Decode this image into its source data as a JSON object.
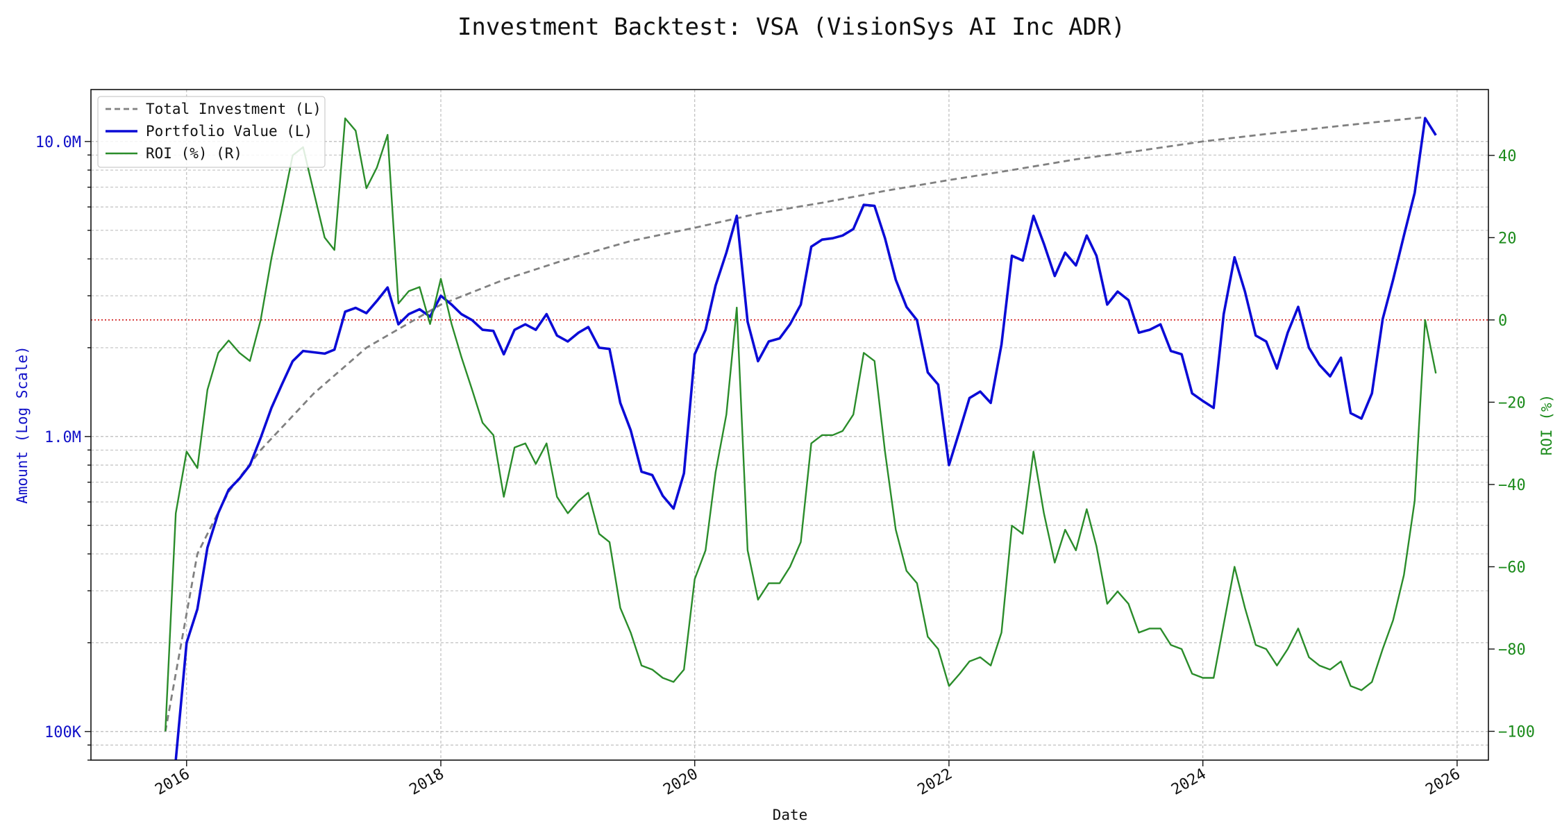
{
  "chart_data": {
    "type": "line",
    "title": "Investment Backtest: VSA (VisionSys AI Inc ADR)",
    "xlabel": "Date",
    "ylabel_left": "Amount (Log Scale)",
    "ylabel_right": "ROI (%)",
    "x_range": [
      "2015-04-01",
      "2026-04-01"
    ],
    "x_ticks": [
      "2016",
      "2018",
      "2020",
      "2022",
      "2024",
      "2026"
    ],
    "y_left_scale": "log",
    "y_left_range": [
      80000,
      15000000
    ],
    "y_left_ticks": [
      {
        "value": 100000,
        "label": "100K"
      },
      {
        "value": 1000000,
        "label": "1.0M"
      },
      {
        "value": 10000000,
        "label": "10.0M"
      }
    ],
    "y_right_range": [
      -107,
      56
    ],
    "y_right_ticks": [
      -100,
      -80,
      -60,
      -40,
      -20,
      0,
      20,
      40
    ],
    "grid": true,
    "legend_position": "top-left",
    "zero_line": {
      "axis": "right",
      "value": 0,
      "color": "#cc0000"
    },
    "colors": {
      "investment": "#808080",
      "portfolio": "#0b0bd6",
      "roi": "#2a8c2a",
      "left_axis": "#1010c8",
      "right_axis": "#1a8a1a"
    },
    "series": [
      {
        "name": "Total Investment (L)",
        "axis": "left",
        "style": "dashed",
        "x": [
          "2015-11-01",
          "2016-02-01",
          "2016-05-01",
          "2016-08-01",
          "2017-01-01",
          "2017-06-01",
          "2018-01-01",
          "2018-07-01",
          "2019-01-01",
          "2019-07-01",
          "2020-01-01",
          "2020-07-01",
          "2021-01-01",
          "2021-07-01",
          "2022-01-01",
          "2022-07-01",
          "2023-01-01",
          "2023-07-01",
          "2024-01-01",
          "2024-07-01",
          "2025-01-01",
          "2025-06-01",
          "2025-10-01"
        ],
        "values": [
          100000,
          400000,
          650000,
          900000,
          1400000,
          2000000,
          2800000,
          3400000,
          4000000,
          4600000,
          5100000,
          5700000,
          6200000,
          6800000,
          7400000,
          8000000,
          8700000,
          9300000,
          10000000,
          10600000,
          11200000,
          11700000,
          12100000
        ]
      },
      {
        "name": "Portfolio Value (L)",
        "axis": "left",
        "style": "solid",
        "x": [
          "2015-12-01",
          "2016-01-01",
          "2016-02-01",
          "2016-03-01",
          "2016-04-01",
          "2016-05-01",
          "2016-06-01",
          "2016-07-01",
          "2016-08-01",
          "2016-09-01",
          "2016-10-01",
          "2016-11-01",
          "2016-12-01",
          "2017-01-01",
          "2017-02-01",
          "2017-03-01",
          "2017-04-01",
          "2017-05-01",
          "2017-06-01",
          "2017-07-01",
          "2017-08-01",
          "2017-09-01",
          "2017-10-01",
          "2017-11-01",
          "2017-12-01",
          "2018-01-01",
          "2018-02-01",
          "2018-03-01",
          "2018-04-01",
          "2018-05-01",
          "2018-06-01",
          "2018-07-01",
          "2018-08-01",
          "2018-09-01",
          "2018-10-01",
          "2018-11-01",
          "2018-12-01",
          "2019-01-01",
          "2019-02-01",
          "2019-03-01",
          "2019-04-01",
          "2019-05-01",
          "2019-06-01",
          "2019-07-01",
          "2019-08-01",
          "2019-09-01",
          "2019-10-01",
          "2019-11-01",
          "2019-12-01",
          "2020-01-01",
          "2020-02-01",
          "2020-03-01",
          "2020-04-01",
          "2020-05-01",
          "2020-06-01",
          "2020-07-01",
          "2020-08-01",
          "2020-09-01",
          "2020-10-01",
          "2020-11-01",
          "2020-12-01",
          "2021-01-01",
          "2021-02-01",
          "2021-03-01",
          "2021-04-01",
          "2021-05-01",
          "2021-06-01",
          "2021-07-01",
          "2021-08-01",
          "2021-09-01",
          "2021-10-01",
          "2021-11-01",
          "2021-12-01",
          "2022-01-01",
          "2022-02-01",
          "2022-03-01",
          "2022-04-01",
          "2022-05-01",
          "2022-06-01",
          "2022-07-01",
          "2022-08-01",
          "2022-09-01",
          "2022-10-01",
          "2022-11-01",
          "2022-12-01",
          "2023-01-01",
          "2023-02-01",
          "2023-03-01",
          "2023-04-01",
          "2023-05-01",
          "2023-06-01",
          "2023-07-01",
          "2023-08-01",
          "2023-09-01",
          "2023-10-01",
          "2023-11-01",
          "2023-12-01",
          "2024-01-01",
          "2024-02-01",
          "2024-03-01",
          "2024-04-01",
          "2024-05-01",
          "2024-06-01",
          "2024-07-01",
          "2024-08-01",
          "2024-09-01",
          "2024-10-01",
          "2024-11-01",
          "2024-12-01",
          "2025-01-01",
          "2025-02-01",
          "2025-03-01",
          "2025-04-01",
          "2025-05-01",
          "2025-06-01",
          "2025-07-01",
          "2025-08-01",
          "2025-09-01",
          "2025-10-01",
          "2025-11-01"
        ],
        "values": [
          80000,
          200000,
          260000,
          420000,
          550000,
          660000,
          720000,
          800000,
          990000,
          1250000,
          1500000,
          1800000,
          1950000,
          1930000,
          1910000,
          1970000,
          2650000,
          2730000,
          2620000,
          2880000,
          3200000,
          2400000,
          2600000,
          2700000,
          2550000,
          3000000,
          2800000,
          2600000,
          2480000,
          2300000,
          2280000,
          1900000,
          2300000,
          2400000,
          2300000,
          2600000,
          2200000,
          2100000,
          2250000,
          2350000,
          2000000,
          1980000,
          1300000,
          1050000,
          760000,
          740000,
          630000,
          570000,
          750000,
          1900000,
          2300000,
          3250000,
          4200000,
          5600000,
          2450000,
          1800000,
          2100000,
          2150000,
          2400000,
          2800000,
          4400000,
          4650000,
          4700000,
          4800000,
          5050000,
          6100000,
          6050000,
          4700000,
          3400000,
          2750000,
          2480000,
          1650000,
          1500000,
          800000,
          1050000,
          1350000,
          1420000,
          1300000,
          2050000,
          4100000,
          3950000,
          5600000,
          4500000,
          3500000,
          4200000,
          3800000,
          4800000,
          4100000,
          2800000,
          3100000,
          2900000,
          2250000,
          2300000,
          2400000,
          1950000,
          1900000,
          1400000,
          1320000,
          1250000,
          2600000,
          4050000,
          3100000,
          2200000,
          2100000,
          1700000,
          2250000,
          2750000,
          2000000,
          1750000,
          1600000,
          1850000,
          1200000,
          1150000,
          1400000,
          2500000,
          3400000,
          4800000,
          6700000,
          12000000,
          10500000
        ]
      },
      {
        "name": "ROI (%) (R)",
        "axis": "right",
        "style": "solid",
        "x": [
          "2015-11-01",
          "2015-12-01",
          "2016-01-01",
          "2016-02-01",
          "2016-03-01",
          "2016-04-01",
          "2016-05-01",
          "2016-06-01",
          "2016-07-01",
          "2016-08-01",
          "2016-09-01",
          "2016-10-01",
          "2016-11-01",
          "2016-12-01",
          "2017-01-01",
          "2017-02-01",
          "2017-03-01",
          "2017-04-01",
          "2017-05-01",
          "2017-06-01",
          "2017-07-01",
          "2017-08-01",
          "2017-09-01",
          "2017-10-01",
          "2017-11-01",
          "2017-12-01",
          "2018-01-01",
          "2018-02-01",
          "2018-03-01",
          "2018-04-01",
          "2018-05-01",
          "2018-06-01",
          "2018-07-01",
          "2018-08-01",
          "2018-09-01",
          "2018-10-01",
          "2018-11-01",
          "2018-12-01",
          "2019-01-01",
          "2019-02-01",
          "2019-03-01",
          "2019-04-01",
          "2019-05-01",
          "2019-06-01",
          "2019-07-01",
          "2019-08-01",
          "2019-09-01",
          "2019-10-01",
          "2019-11-01",
          "2019-12-01",
          "2020-01-01",
          "2020-02-01",
          "2020-03-01",
          "2020-04-01",
          "2020-05-01",
          "2020-06-01",
          "2020-07-01",
          "2020-08-01",
          "2020-09-01",
          "2020-10-01",
          "2020-11-01",
          "2020-12-01",
          "2021-01-01",
          "2021-02-01",
          "2021-03-01",
          "2021-04-01",
          "2021-05-01",
          "2021-06-01",
          "2021-07-01",
          "2021-08-01",
          "2021-09-01",
          "2021-10-01",
          "2021-11-01",
          "2021-12-01",
          "2022-01-01",
          "2022-02-01",
          "2022-03-01",
          "2022-04-01",
          "2022-05-01",
          "2022-06-01",
          "2022-07-01",
          "2022-08-01",
          "2022-09-01",
          "2022-10-01",
          "2022-11-01",
          "2022-12-01",
          "2023-01-01",
          "2023-02-01",
          "2023-03-01",
          "2023-04-01",
          "2023-05-01",
          "2023-06-01",
          "2023-07-01",
          "2023-08-01",
          "2023-09-01",
          "2023-10-01",
          "2023-11-01",
          "2023-12-01",
          "2024-01-01",
          "2024-02-01",
          "2024-03-01",
          "2024-04-01",
          "2024-05-01",
          "2024-06-01",
          "2024-07-01",
          "2024-08-01",
          "2024-09-01",
          "2024-10-01",
          "2024-11-01",
          "2024-12-01",
          "2025-01-01",
          "2025-02-01",
          "2025-03-01",
          "2025-04-01",
          "2025-05-01",
          "2025-06-01",
          "2025-07-01",
          "2025-08-01",
          "2025-09-01",
          "2025-10-01",
          "2025-11-01"
        ],
        "values": [
          -100,
          -47,
          -32,
          -36,
          -17,
          -8,
          -5,
          -8,
          -10,
          0,
          15,
          27,
          40,
          42,
          31,
          20,
          17,
          49,
          46,
          32,
          37,
          45,
          4,
          7,
          8,
          -1,
          10,
          -1,
          -9,
          -17,
          -25,
          -28,
          -43,
          -31,
          -30,
          -35,
          -30,
          -43,
          -47,
          -44,
          -42,
          -52,
          -54,
          -70,
          -76,
          -84,
          -85,
          -87,
          -88,
          -85,
          -63,
          -56,
          -37,
          -23,
          3,
          -56,
          -68,
          -64,
          -64,
          -60,
          -54,
          -30,
          -28,
          -28,
          -27,
          -23,
          -8,
          -10,
          -32,
          -51,
          -61,
          -64,
          -77,
          -80,
          -89,
          -86,
          -83,
          -82,
          -84,
          -76,
          -50,
          -52,
          -32,
          -47,
          -59,
          -51,
          -56,
          -46,
          -55,
          -69,
          -66,
          -69,
          -76,
          -75,
          -75,
          -79,
          -80,
          -86,
          -87,
          -87,
          -74,
          -60,
          -70,
          -79,
          -80,
          -84,
          -80,
          -75,
          -82,
          -84,
          -85,
          -83,
          -89,
          -90,
          -88,
          -80,
          -73,
          -62,
          -44,
          0,
          -13
        ]
      }
    ]
  }
}
